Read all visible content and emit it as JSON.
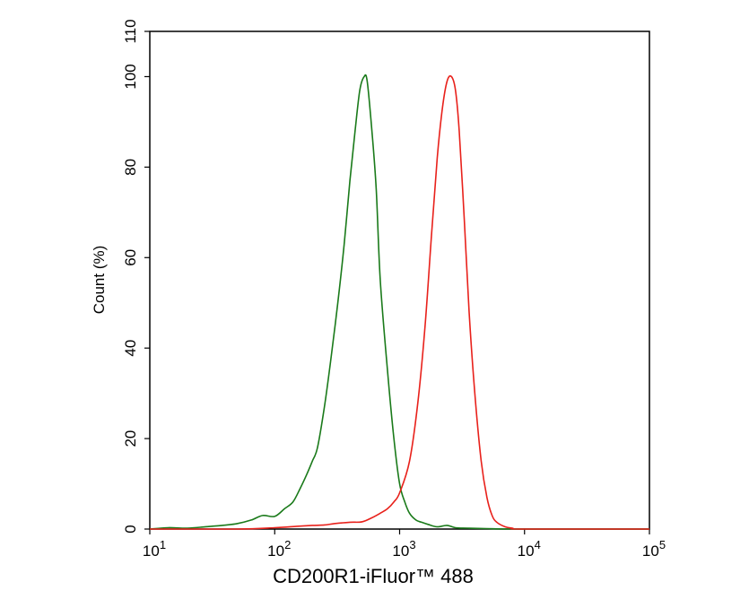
{
  "chart_data": {
    "type": "line",
    "xlabel": "CD200R1-iFluor™ 488",
    "ylabel": "Count (%)",
    "xscale": "log",
    "xlim": [
      10,
      100000
    ],
    "ylim": [
      0,
      110
    ],
    "x_ticks": [
      {
        "value": 10,
        "base": "10",
        "exp": "1"
      },
      {
        "value": 100,
        "base": "10",
        "exp": "2"
      },
      {
        "value": 1000,
        "base": "10",
        "exp": "3"
      },
      {
        "value": 10000,
        "base": "10",
        "exp": "4"
      },
      {
        "value": 100000,
        "base": "10",
        "exp": "5"
      }
    ],
    "y_ticks": [
      0,
      20,
      40,
      60,
      80,
      100,
      110
    ],
    "grid": false,
    "legend": "none",
    "series": [
      {
        "color": "#1a7a1a",
        "x": [
          10,
          14,
          20,
          28,
          38,
          50,
          65,
          80,
          100,
          120,
          140,
          160,
          180,
          200,
          220,
          250,
          280,
          320,
          360,
          400,
          440,
          480,
          520,
          550,
          600,
          650,
          700,
          800,
          900,
          1000,
          1100,
          1200,
          1350,
          1500,
          1700,
          2000,
          2400,
          2800,
          3500,
          5000,
          10000,
          100000
        ],
        "y": [
          0,
          0.3,
          0.2,
          0.5,
          0.8,
          1.2,
          2,
          3,
          2.8,
          4.5,
          6,
          9,
          12,
          15,
          18,
          27,
          37,
          50,
          63,
          77,
          88,
          97,
          100,
          99,
          88,
          75,
          55,
          35,
          20,
          10,
          6,
          3.5,
          2,
          1.5,
          1,
          0.5,
          0.8,
          0.3,
          0.2,
          0.1,
          0,
          0
        ]
      },
      {
        "color": "#e8211b",
        "x": [
          10,
          50,
          100,
          150,
          200,
          250,
          300,
          400,
          500,
          600,
          700,
          800,
          900,
          1000,
          1200,
          1400,
          1600,
          1800,
          2000,
          2200,
          2400,
          2600,
          2800,
          3000,
          3300,
          3600,
          4000,
          4500,
          5000,
          5500,
          6000,
          7000,
          8000,
          10000,
          100000
        ],
        "y": [
          0,
          0,
          0.3,
          0.6,
          0.8,
          0.9,
          1.2,
          1.5,
          1.6,
          2.5,
          3.5,
          4.5,
          6,
          8,
          15,
          28,
          45,
          65,
          82,
          93,
          99,
          100,
          97,
          88,
          68,
          48,
          30,
          15,
          7,
          3,
          1.5,
          0.5,
          0.2,
          0,
          0
        ]
      }
    ]
  }
}
